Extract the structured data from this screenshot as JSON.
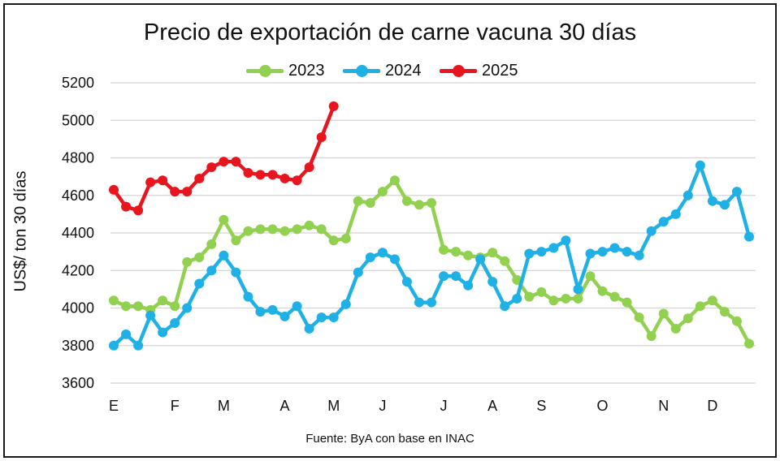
{
  "chart_data": {
    "type": "line",
    "title": "Precio de exportación de carne vacuna 30 días",
    "ylabel": "US$/ ton 30 días",
    "xlabel": "",
    "source": "Fuente: ByA con base en INAC",
    "ylim": [
      3600,
      5200
    ],
    "yticks": [
      3600,
      3800,
      4000,
      4200,
      4400,
      4600,
      4800,
      5000,
      5200
    ],
    "grid": true,
    "legend_position": "top",
    "x_month_labels": [
      {
        "label": "E",
        "week": 0
      },
      {
        "label": "F",
        "week": 5
      },
      {
        "label": "M",
        "week": 9
      },
      {
        "label": "A",
        "week": 14
      },
      {
        "label": "M",
        "week": 18
      },
      {
        "label": "J",
        "week": 22
      },
      {
        "label": "J",
        "week": 27
      },
      {
        "label": "A",
        "week": 31
      },
      {
        "label": "S",
        "week": 35
      },
      {
        "label": "O",
        "week": 40
      },
      {
        "label": "N",
        "week": 45
      },
      {
        "label": "D",
        "week": 49
      }
    ],
    "series": [
      {
        "name": "2023",
        "color": "#92d050",
        "values": [
          4040,
          4010,
          4010,
          3990,
          4040,
          4010,
          4245,
          4270,
          4340,
          4470,
          4360,
          4410,
          4420,
          4420,
          4410,
          4420,
          4440,
          4420,
          4360,
          4370,
          4570,
          4560,
          4620,
          4680,
          4570,
          4550,
          4560,
          4310,
          4300,
          4280,
          4270,
          4295,
          4250,
          4150,
          4060,
          4085,
          4040,
          4050,
          4050,
          4170,
          4090,
          4060,
          4030,
          3950,
          3850,
          3970,
          3890,
          3945,
          4010,
          4040,
          3980,
          3930,
          3810
        ]
      },
      {
        "name": "2024",
        "color": "#1fb0e6",
        "values": [
          3800,
          3860,
          3800,
          3960,
          3870,
          3920,
          4000,
          4130,
          4200,
          4280,
          4190,
          4060,
          3980,
          3990,
          3955,
          4010,
          3890,
          3950,
          3950,
          4020,
          4190,
          4270,
          4295,
          4260,
          4140,
          4030,
          4030,
          4170,
          4170,
          4120,
          4260,
          4140,
          4010,
          4050,
          4290,
          4300,
          4320,
          4360,
          4100,
          4290,
          4300,
          4320,
          4300,
          4280,
          4410,
          4460,
          4500,
          4600,
          4760,
          4570,
          4550,
          4620,
          4380
        ]
      },
      {
        "name": "2025",
        "color": "#e8151f",
        "values": [
          4630,
          4540,
          4520,
          4670,
          4680,
          4620,
          4620,
          4690,
          4750,
          4780,
          4780,
          4720,
          4710,
          4710,
          4690,
          4680,
          4750,
          4910,
          5075
        ]
      }
    ]
  }
}
